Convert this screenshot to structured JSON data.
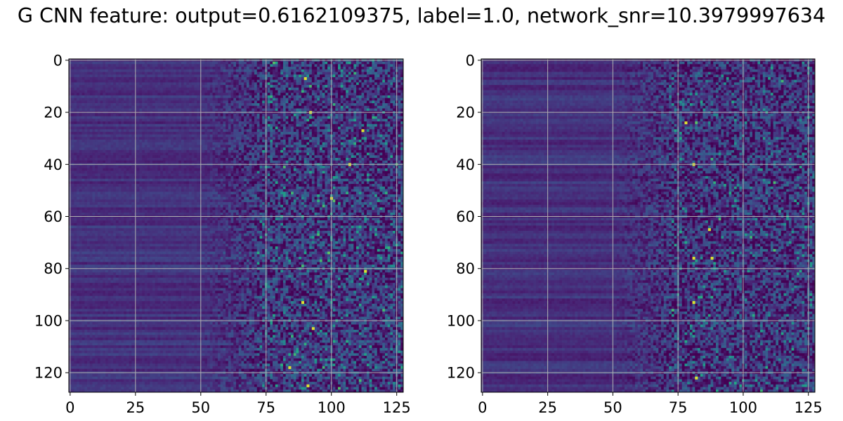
{
  "figure": {
    "title": "G CNN feature: output=0.6162109375, label=1.0, network_snr=10.3979997634"
  },
  "chart_data": [
    {
      "type": "heatmap",
      "title": "",
      "xlabel": "",
      "ylabel": "",
      "xlim": [
        -0.5,
        127.5
      ],
      "ylim": [
        127.5,
        -0.5
      ],
      "xticks": [
        0,
        25,
        50,
        75,
        100,
        125
      ],
      "yticks": [
        0,
        20,
        40,
        60,
        80,
        100,
        120
      ],
      "grid": true,
      "colormap": "viridis",
      "n_rows": 128,
      "n_cols": 128,
      "bright_spots": [
        [
          7,
          90
        ],
        [
          40,
          107
        ],
        [
          53,
          100
        ],
        [
          20,
          92
        ],
        [
          27,
          112
        ],
        [
          81,
          113
        ],
        [
          93,
          89
        ],
        [
          103,
          93
        ],
        [
          125,
          91
        ],
        [
          118,
          84
        ]
      ]
    },
    {
      "type": "heatmap",
      "title": "",
      "xlabel": "",
      "ylabel": "",
      "xlim": [
        -0.5,
        127.5
      ],
      "ylim": [
        127.5,
        -0.5
      ],
      "xticks": [
        0,
        25,
        50,
        75,
        100,
        125
      ],
      "yticks": [
        0,
        20,
        40,
        60,
        80,
        100,
        120
      ],
      "grid": true,
      "colormap": "viridis",
      "n_rows": 128,
      "n_cols": 128,
      "bright_spots": [
        [
          40,
          81
        ],
        [
          76,
          81
        ],
        [
          76,
          88
        ],
        [
          65,
          87
        ],
        [
          122,
          82
        ],
        [
          24,
          78
        ],
        [
          93,
          81
        ]
      ]
    }
  ]
}
